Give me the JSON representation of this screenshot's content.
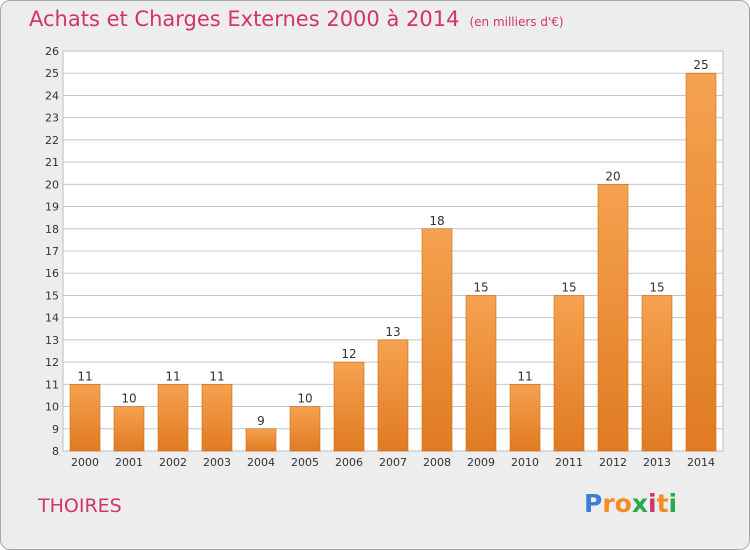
{
  "header": {
    "title": "Achats et Charges Externes 2000 à 2014",
    "subtitle": "(en milliers d'€)"
  },
  "footer": {
    "town": "THOIRES",
    "brand": "Proxiti",
    "brand_letters": [
      "P",
      "r",
      "o",
      "x",
      "i",
      "t",
      "i"
    ],
    "brand_colors": [
      "#3a7fd5",
      "#f28c28",
      "#f28c28",
      "#2aa84a",
      "#d2336a",
      "#f28c28",
      "#2aa84a"
    ]
  },
  "colors": {
    "title": "#d2336a",
    "bar_top": "#f5a24f",
    "bar_bottom": "#e07b22",
    "bar_edge": "#c96a1c",
    "grid": "#c8c8c8",
    "background": "#ededed"
  },
  "chart_data": {
    "type": "bar",
    "title": "Achats et Charges Externes 2000 à 2014",
    "subtitle": "(en milliers d'€)",
    "xlabel": "",
    "ylabel": "",
    "categories": [
      "2000",
      "2001",
      "2002",
      "2003",
      "2004",
      "2005",
      "2006",
      "2007",
      "2008",
      "2009",
      "2010",
      "2011",
      "2012",
      "2013",
      "2014"
    ],
    "values": [
      11,
      10,
      11,
      11,
      9,
      10,
      12,
      13,
      18,
      15,
      11,
      15,
      20,
      15,
      25
    ],
    "ylim": [
      8,
      26
    ],
    "yticks": [
      8,
      9,
      10,
      11,
      12,
      13,
      14,
      15,
      16,
      17,
      18,
      19,
      20,
      21,
      22,
      23,
      24,
      25,
      26
    ],
    "grid": true,
    "legend": "none",
    "data_labels": true
  }
}
